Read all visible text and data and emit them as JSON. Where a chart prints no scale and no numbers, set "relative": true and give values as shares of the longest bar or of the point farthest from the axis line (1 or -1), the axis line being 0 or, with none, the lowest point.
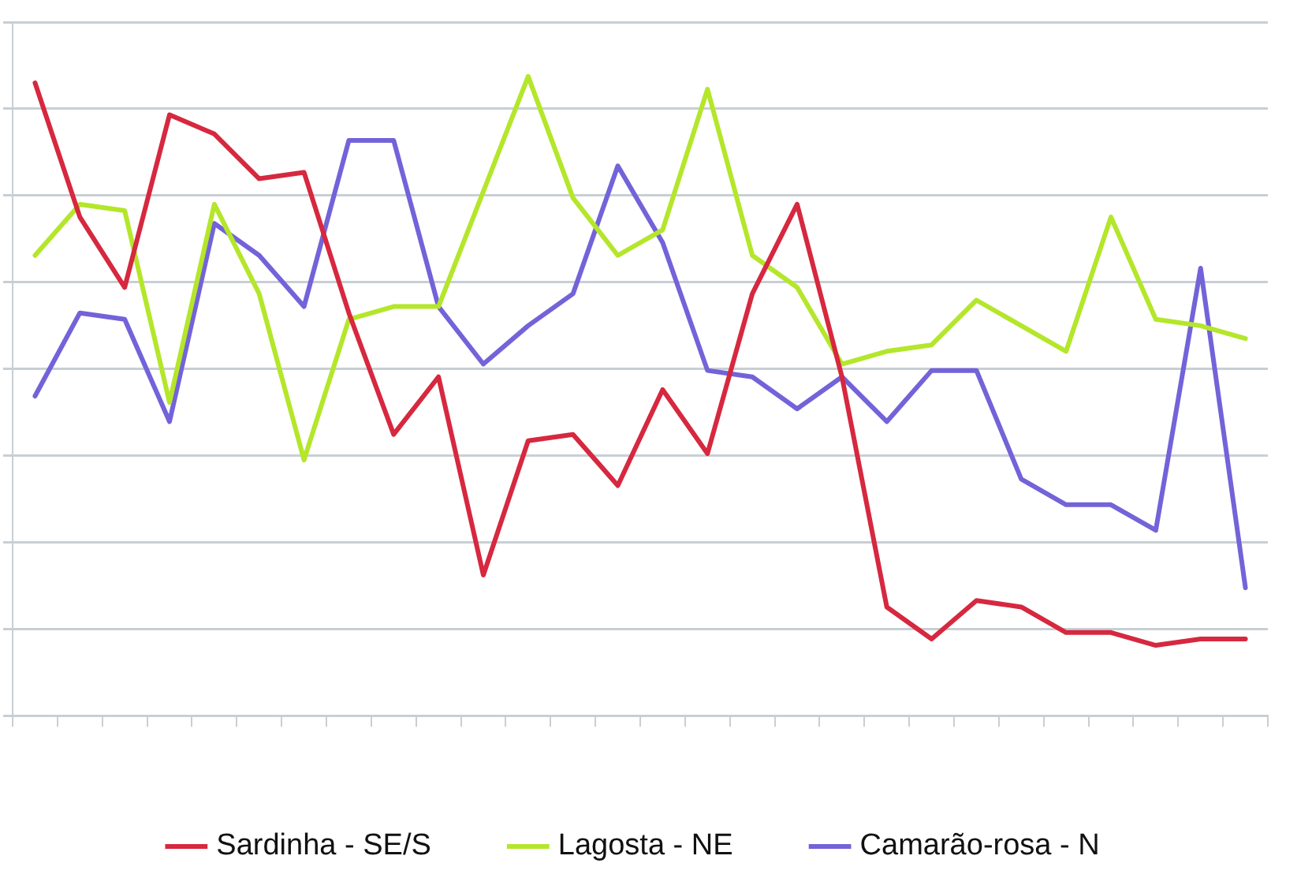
{
  "chart_data": {
    "type": "line",
    "relative": true,
    "grid": "y",
    "legend": "bottom",
    "marker": "none",
    "line_style": "solid",
    "categories": [
      null,
      null,
      null,
      null,
      null,
      null,
      null,
      null,
      null,
      null,
      null,
      null,
      null,
      null,
      null,
      null,
      null,
      null,
      null,
      null,
      null,
      null,
      null,
      null,
      null,
      null,
      null,
      null
    ],
    "series": [
      {
        "name": "Sardinha - SE/S",
        "color": "#d6283f",
        "values": [
          0.99,
          0.78,
          0.67,
          0.94,
          0.91,
          0.84,
          0.85,
          0.63,
          0.44,
          0.53,
          0.22,
          0.43,
          0.44,
          0.36,
          0.51,
          0.41,
          0.66,
          0.8,
          0.53,
          0.17,
          0.12,
          0.18,
          0.17,
          0.13,
          0.13,
          0.11,
          0.12,
          0.12
        ]
      },
      {
        "name": "Lagosta - NE",
        "color": "#b4e62a",
        "values": [
          0.72,
          0.8,
          0.79,
          0.49,
          0.8,
          0.66,
          0.4,
          0.62,
          0.64,
          0.64,
          0.82,
          1.0,
          0.81,
          0.72,
          0.76,
          0.98,
          0.72,
          0.67,
          0.55,
          0.57,
          0.58,
          0.65,
          0.61,
          0.57,
          0.78,
          0.62,
          0.61,
          0.59
        ]
      },
      {
        "name": "Camarão-rosa - N",
        "color": "#7363d9",
        "values": [
          0.5,
          0.63,
          0.62,
          0.46,
          0.77,
          0.72,
          0.64,
          0.9,
          0.9,
          0.64,
          0.55,
          0.61,
          0.66,
          0.86,
          0.74,
          0.54,
          0.53,
          0.48,
          0.53,
          0.46,
          0.54,
          0.54,
          0.37,
          0.33,
          0.33,
          0.29,
          0.7,
          0.2
        ]
      }
    ]
  }
}
